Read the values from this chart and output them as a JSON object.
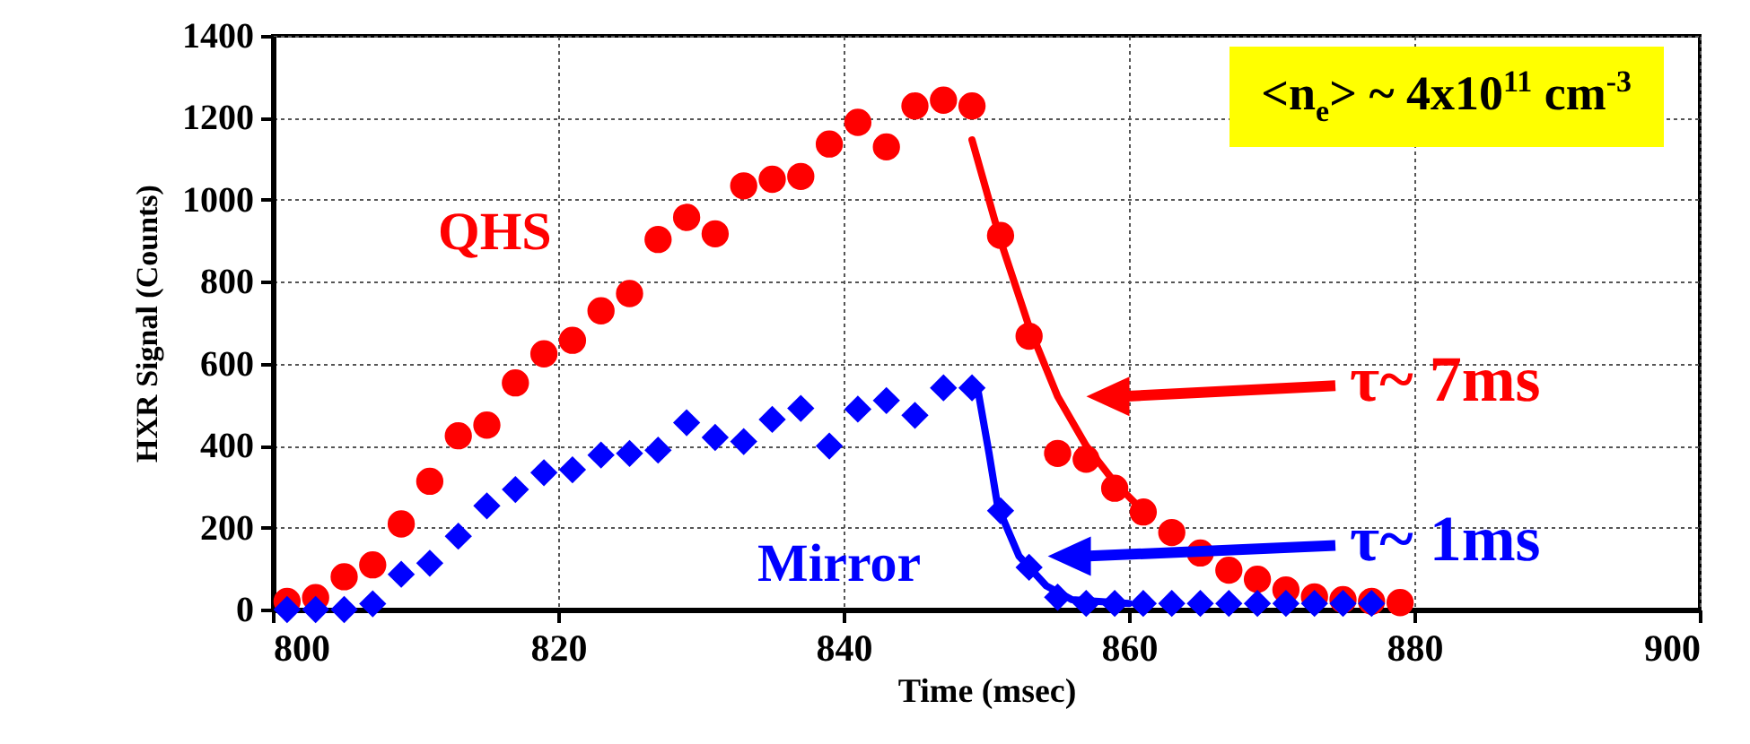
{
  "chart_data": {
    "type": "scatter",
    "xlabel": "Time (msec)",
    "ylabel": "HXR Signal (Counts)",
    "xlim": [
      800,
      900
    ],
    "xticks": [
      800,
      820,
      840,
      860,
      880,
      900
    ],
    "ylim": [
      0,
      1400
    ],
    "yticks": [
      0,
      200,
      400,
      600,
      800,
      1000,
      1200,
      1400
    ],
    "grid": true,
    "annotations": [
      "<n$_{e}$> ~ 4x10$^{11}$ cm$^{-3}$",
      "τ~ 7ms",
      "τ~ 1ms"
    ],
    "series": [
      {
        "name": "QHS",
        "marker": "circle",
        "color": "#ff0000",
        "x": [
          801,
          803,
          805,
          807,
          809,
          811,
          813,
          815,
          817,
          819,
          821,
          823,
          825,
          827,
          829,
          831,
          833,
          835,
          837,
          839,
          841,
          843,
          845,
          847,
          849,
          851,
          853,
          855,
          857,
          859,
          861,
          863,
          865,
          867,
          869,
          871,
          873,
          875,
          877,
          879
        ],
        "values": [
          20,
          29,
          80,
          109,
          209,
          313,
          424,
          450,
          553,
          624,
          657,
          729,
          771,
          903,
          957,
          917,
          1034,
          1050,
          1057,
          1136,
          1189,
          1129,
          1229,
          1243,
          1229,
          913,
          667,
          381,
          367,
          296,
          238,
          188,
          138,
          96,
          74,
          48,
          31,
          24,
          20,
          17
        ]
      },
      {
        "name": "Mirror",
        "marker": "diamond",
        "color": "#0000ff",
        "x": [
          801,
          803,
          805,
          807,
          809,
          811,
          813,
          815,
          817,
          819,
          821,
          823,
          825,
          827,
          829,
          831,
          833,
          835,
          837,
          839,
          841,
          843,
          845,
          847,
          849,
          851,
          853,
          855,
          857,
          859,
          861,
          863,
          865,
          867,
          869,
          871,
          873,
          875,
          877
        ],
        "values": [
          0,
          0,
          0,
          14,
          86,
          113,
          179,
          253,
          293,
          334,
          341,
          377,
          381,
          389,
          456,
          420,
          410,
          464,
          491,
          399,
          489,
          510,
          474,
          541,
          541,
          241,
          103,
          30,
          15,
          15,
          15,
          15,
          15,
          15,
          15,
          15,
          15,
          15,
          15
        ]
      },
      {
        "type": "line",
        "marker": "none",
        "line_style": "solid",
        "color": "#ff0000",
        "x": [
          849,
          851,
          853,
          855,
          857,
          859,
          861
        ],
        "values": [
          1146,
          900,
          690,
          520,
          400,
          310,
          240
        ]
      },
      {
        "type": "line",
        "marker": "none",
        "line_style": "solid",
        "color": "#0000ff",
        "x": [
          849.4,
          850.2,
          850.8,
          852.3,
          854.2,
          856,
          860
        ],
        "values": [
          538,
          380,
          252,
          130,
          58,
          24,
          15
        ]
      }
    ]
  }
}
